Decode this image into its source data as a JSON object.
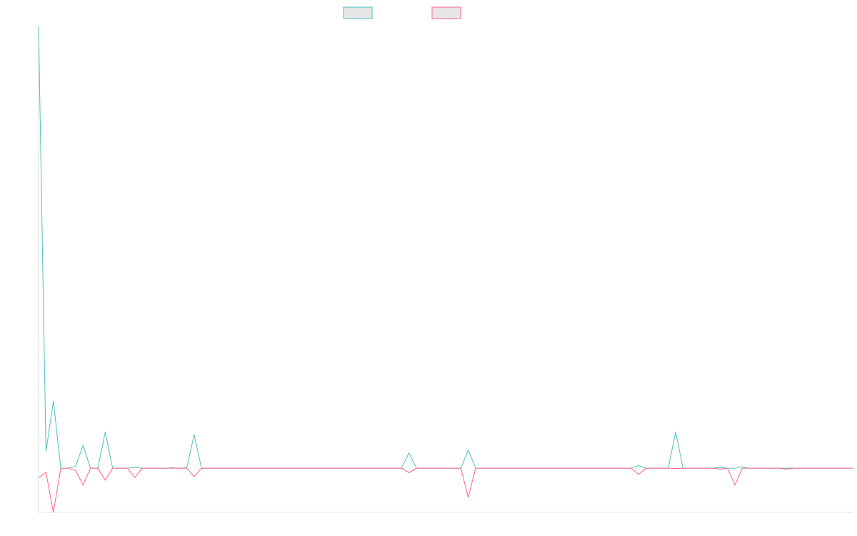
{
  "chart_data": {
    "type": "line",
    "title": "",
    "xlabel": "",
    "ylabel": "",
    "grid": false,
    "legend": {
      "placement": "top-center"
    },
    "x": [
      1,
      2,
      3,
      4,
      5,
      6,
      7,
      8,
      9,
      10,
      11,
      12,
      13,
      14,
      15,
      16,
      17,
      18,
      19,
      20,
      21,
      22,
      23,
      24,
      25,
      26,
      27,
      28,
      29,
      30,
      31,
      32,
      33,
      34,
      35,
      36,
      37,
      38,
      39,
      40,
      41,
      42,
      43,
      44,
      45,
      46,
      47,
      48,
      49,
      50,
      51,
      52,
      53,
      54,
      55,
      56,
      57,
      58,
      59,
      60,
      61,
      62,
      63,
      64,
      65,
      66,
      67,
      68,
      69,
      70,
      71,
      72,
      73,
      74,
      75,
      76,
      77,
      78,
      79,
      80,
      81,
      82,
      83,
      84,
      85,
      86,
      87,
      88,
      89,
      90,
      91,
      92,
      93,
      94,
      95,
      96,
      97,
      98,
      99,
      100,
      101,
      102,
      103,
      104,
      105,
      106,
      107,
      108,
      109,
      110,
      111
    ],
    "ylim": [
      -100,
      1000
    ],
    "series": [
      {
        "name": "",
        "color": "#4bc0c0",
        "values": [
          1000,
          38,
          152,
          0,
          0,
          4,
          52,
          0,
          0,
          82,
          0,
          0,
          0,
          2,
          0,
          0,
          0,
          0,
          1,
          0,
          1,
          76,
          0,
          0,
          0,
          0,
          0,
          0,
          0,
          0,
          0,
          0,
          0,
          0,
          0,
          0,
          0,
          0,
          0,
          0,
          0,
          0,
          0,
          0,
          0,
          0,
          0,
          0,
          0,
          0,
          35,
          0,
          0,
          0,
          0,
          0,
          0,
          0,
          41,
          0,
          0,
          0,
          0,
          0,
          0,
          0,
          0,
          0,
          0,
          0,
          0,
          0,
          0,
          0,
          0,
          0,
          0,
          0,
          0,
          0,
          0,
          6,
          0,
          0,
          0,
          0,
          82,
          0,
          0,
          0,
          0,
          0,
          2,
          0,
          0,
          3,
          0,
          0,
          0,
          0,
          0,
          0,
          0,
          0,
          0,
          0,
          0,
          0,
          0,
          0,
          0
        ]
      },
      {
        "name": "",
        "color": "#ff6384",
        "values": [
          -22,
          -9,
          -100,
          0,
          0,
          -5,
          -38,
          0,
          0,
          -27,
          0,
          0,
          0,
          -21,
          0,
          0,
          0,
          0,
          0,
          0,
          0,
          -19,
          0,
          0,
          0,
          0,
          0,
          0,
          0,
          0,
          0,
          0,
          0,
          0,
          0,
          0,
          0,
          0,
          0,
          0,
          0,
          0,
          0,
          0,
          0,
          0,
          0,
          0,
          0,
          0,
          -10,
          0,
          0,
          0,
          0,
          0,
          0,
          0,
          -66,
          0,
          0,
          0,
          0,
          0,
          0,
          0,
          0,
          0,
          0,
          0,
          0,
          0,
          0,
          0,
          0,
          0,
          0,
          0,
          0,
          0,
          0,
          -14,
          0,
          0,
          0,
          0,
          -1,
          0,
          0,
          0,
          0,
          0,
          -2,
          0,
          -38,
          0,
          0,
          0,
          0,
          0,
          0,
          -2,
          0,
          0,
          0,
          0,
          0,
          0,
          0,
          0,
          0
        ]
      }
    ]
  }
}
